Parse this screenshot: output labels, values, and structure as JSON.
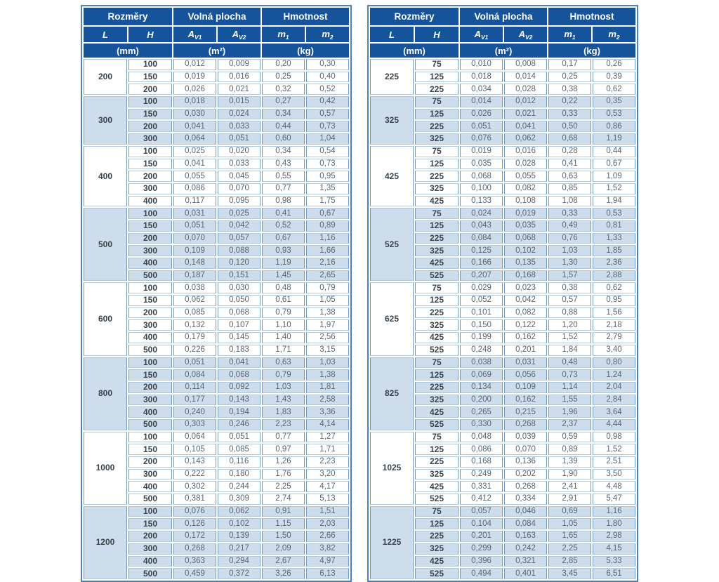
{
  "colors": {
    "header_bg": "#15549b",
    "band_blue": "#cdddec",
    "band_white": "#ffffff",
    "outer_border": "#4d83b5",
    "cell_border_v": "#6f9cc6",
    "cell_border_h": "#aec8df",
    "value_text": "#5b6570",
    "strong_text": "#39434b",
    "page_bg": "#ffffff"
  },
  "tables": [
    {
      "name": "left-table",
      "header": {
        "group_headers": [
          "Rozměry",
          "Volná plocha",
          "Hmotnost"
        ],
        "columns": [
          {
            "label": "L",
            "sub": ""
          },
          {
            "label": "H",
            "sub": ""
          },
          {
            "label": "A",
            "sub": "V1"
          },
          {
            "label": "A",
            "sub": "V2"
          },
          {
            "label": "m",
            "sub": "1"
          },
          {
            "label": "m",
            "sub": "2"
          }
        ],
        "units": [
          "(mm)",
          "(m²)",
          "(kg)"
        ]
      },
      "groups": [
        {
          "L": "200",
          "rows": [
            [
              "100",
              "0,012",
              "0,009",
              "0,20",
              "0,30"
            ],
            [
              "150",
              "0,019",
              "0,016",
              "0,25",
              "0,40"
            ],
            [
              "200",
              "0,026",
              "0,021",
              "0,32",
              "0,52"
            ]
          ]
        },
        {
          "L": "300",
          "rows": [
            [
              "100",
              "0,018",
              "0,015",
              "0,27",
              "0,42"
            ],
            [
              "150",
              "0,030",
              "0,024",
              "0,34",
              "0,57"
            ],
            [
              "200",
              "0,041",
              "0,033",
              "0,44",
              "0,73"
            ],
            [
              "300",
              "0,064",
              "0,051",
              "0,60",
              "1,04"
            ]
          ]
        },
        {
          "L": "400",
          "rows": [
            [
              "100",
              "0,025",
              "0,020",
              "0,34",
              "0,54"
            ],
            [
              "150",
              "0,041",
              "0,033",
              "0,43",
              "0,73"
            ],
            [
              "200",
              "0,055",
              "0,045",
              "0,55",
              "0,95"
            ],
            [
              "300",
              "0,086",
              "0,070",
              "0,77",
              "1,35"
            ],
            [
              "400",
              "0,117",
              "0,095",
              "0,98",
              "1,75"
            ]
          ]
        },
        {
          "L": "500",
          "rows": [
            [
              "100",
              "0,031",
              "0,025",
              "0,41",
              "0,67"
            ],
            [
              "150",
              "0,051",
              "0,042",
              "0,52",
              "0,89"
            ],
            [
              "200",
              "0,070",
              "0,057",
              "0,67",
              "1,16"
            ],
            [
              "300",
              "0,109",
              "0,088",
              "0,93",
              "1,66"
            ],
            [
              "400",
              "0,148",
              "0,120",
              "1,19",
              "2,16"
            ],
            [
              "500",
              "0,187",
              "0,151",
              "1,45",
              "2,65"
            ]
          ]
        },
        {
          "L": "600",
          "rows": [
            [
              "100",
              "0,038",
              "0,030",
              "0,48",
              "0,79"
            ],
            [
              "150",
              "0,062",
              "0,050",
              "0,61",
              "1,05"
            ],
            [
              "200",
              "0,085",
              "0,068",
              "0,79",
              "1,38"
            ],
            [
              "300",
              "0,132",
              "0,107",
              "1,10",
              "1,97"
            ],
            [
              "400",
              "0,179",
              "0,145",
              "1,40",
              "2,56"
            ],
            [
              "500",
              "0,226",
              "0,183",
              "1,71",
              "3,15"
            ]
          ]
        },
        {
          "L": "800",
          "rows": [
            [
              "100",
              "0,051",
              "0,041",
              "0,63",
              "1,03"
            ],
            [
              "150",
              "0,084",
              "0,068",
              "0,79",
              "1,38"
            ],
            [
              "200",
              "0,114",
              "0,092",
              "1,03",
              "1,81"
            ],
            [
              "300",
              "0,177",
              "0,143",
              "1,43",
              "2,58"
            ],
            [
              "400",
              "0,240",
              "0,194",
              "1,83",
              "3,36"
            ],
            [
              "500",
              "0,303",
              "0,246",
              "2,23",
              "4,14"
            ]
          ]
        },
        {
          "L": "1000",
          "rows": [
            [
              "100",
              "0,064",
              "0,051",
              "0,77",
              "1,27"
            ],
            [
              "150",
              "0,105",
              "0,085",
              "0,97",
              "1,71"
            ],
            [
              "200",
              "0,143",
              "0,116",
              "1,26",
              "2,23"
            ],
            [
              "300",
              "0,222",
              "0,180",
              "1,76",
              "3,20"
            ],
            [
              "400",
              "0,302",
              "0,244",
              "2,25",
              "4,17"
            ],
            [
              "500",
              "0,381",
              "0,309",
              "2,74",
              "5,13"
            ]
          ]
        },
        {
          "L": "1200",
          "rows": [
            [
              "100",
              "0,076",
              "0,062",
              "0,91",
              "1,51"
            ],
            [
              "150",
              "0,126",
              "0,102",
              "1,15",
              "2,03"
            ],
            [
              "200",
              "0,172",
              "0,139",
              "1,50",
              "2,66"
            ],
            [
              "300",
              "0,268",
              "0,217",
              "2,09",
              "3,82"
            ],
            [
              "400",
              "0,363",
              "0,294",
              "2,67",
              "4,97"
            ],
            [
              "500",
              "0,459",
              "0,372",
              "3,26",
              "6,13"
            ]
          ]
        }
      ]
    },
    {
      "name": "right-table",
      "header": {
        "group_headers": [
          "Rozměry",
          "Volná plocha",
          "Hmotnost"
        ],
        "columns": [
          {
            "label": "L",
            "sub": ""
          },
          {
            "label": "H",
            "sub": ""
          },
          {
            "label": "A",
            "sub": "V1"
          },
          {
            "label": "A",
            "sub": "V2"
          },
          {
            "label": "m",
            "sub": "1"
          },
          {
            "label": "m",
            "sub": "2"
          }
        ],
        "units": [
          "(mm)",
          "(m²)",
          "(kg)"
        ]
      },
      "groups": [
        {
          "L": "225",
          "rows": [
            [
              "75",
              "0,010",
              "0,008",
              "0,17",
              "0,26"
            ],
            [
              "125",
              "0,018",
              "0,014",
              "0,25",
              "0,39"
            ],
            [
              "225",
              "0,034",
              "0,028",
              "0,38",
              "0,62"
            ]
          ]
        },
        {
          "L": "325",
          "rows": [
            [
              "75",
              "0,014",
              "0,012",
              "0,22",
              "0,35"
            ],
            [
              "125",
              "0,026",
              "0,021",
              "0,33",
              "0,53"
            ],
            [
              "225",
              "0,051",
              "0,041",
              "0,50",
              "0,86"
            ],
            [
              "325",
              "0,076",
              "0,062",
              "0,68",
              "1,19"
            ]
          ]
        },
        {
          "L": "425",
          "rows": [
            [
              "75",
              "0,019",
              "0,016",
              "0,28",
              "0,44"
            ],
            [
              "125",
              "0,035",
              "0,028",
              "0,41",
              "0,67"
            ],
            [
              "225",
              "0,068",
              "0,055",
              "0,63",
              "1,09"
            ],
            [
              "325",
              "0,100",
              "0,082",
              "0,85",
              "1,52"
            ],
            [
              "425",
              "0,133",
              "0,108",
              "1,08",
              "1,94"
            ]
          ]
        },
        {
          "L": "525",
          "rows": [
            [
              "75",
              "0,024",
              "0,019",
              "0,33",
              "0,53"
            ],
            [
              "125",
              "0,043",
              "0,035",
              "0,49",
              "0,81"
            ],
            [
              "225",
              "0,084",
              "0,068",
              "0,76",
              "1,33"
            ],
            [
              "325",
              "0,125",
              "0,102",
              "1,03",
              "1,85"
            ],
            [
              "425",
              "0,166",
              "0,135",
              "1,30",
              "2,36"
            ],
            [
              "525",
              "0,207",
              "0,168",
              "1,57",
              "2,88"
            ]
          ]
        },
        {
          "L": "625",
          "rows": [
            [
              "75",
              "0,029",
              "0,023",
              "0,38",
              "0,62"
            ],
            [
              "125",
              "0,052",
              "0,042",
              "0,57",
              "0,95"
            ],
            [
              "225",
              "0,101",
              "0,082",
              "0,88",
              "1,56"
            ],
            [
              "325",
              "0,150",
              "0,122",
              "1,20",
              "2,18"
            ],
            [
              "425",
              "0,199",
              "0,162",
              "1,52",
              "2,79"
            ],
            [
              "525",
              "0,248",
              "0,201",
              "1,84",
              "3,40"
            ]
          ]
        },
        {
          "L": "825",
          "rows": [
            [
              "75",
              "0,038",
              "0,031",
              "0,48",
              "0,80"
            ],
            [
              "125",
              "0,069",
              "0,056",
              "0,73",
              "1,24"
            ],
            [
              "225",
              "0,134",
              "0,109",
              "1,14",
              "2,04"
            ],
            [
              "325",
              "0,200",
              "0,162",
              "1,55",
              "2,84"
            ],
            [
              "425",
              "0,265",
              "0,215",
              "1,96",
              "3,64"
            ],
            [
              "525",
              "0,330",
              "0,268",
              "2,37",
              "4,44"
            ]
          ]
        },
        {
          "L": "1025",
          "rows": [
            [
              "75",
              "0,048",
              "0,039",
              "0,59",
              "0,98"
            ],
            [
              "125",
              "0,086",
              "0,070",
              "0,89",
              "1,52"
            ],
            [
              "225",
              "0,168",
              "0,136",
              "1,39",
              "2,51"
            ],
            [
              "325",
              "0,249",
              "0,202",
              "1,90",
              "3,50"
            ],
            [
              "425",
              "0,331",
              "0,268",
              "2,41",
              "4,48"
            ],
            [
              "525",
              "0,412",
              "0,334",
              "2,91",
              "5,47"
            ]
          ]
        },
        {
          "L": "1225",
          "rows": [
            [
              "75",
              "0,057",
              "0,046",
              "0,69",
              "1,16"
            ],
            [
              "125",
              "0,104",
              "0,084",
              "1,05",
              "1,80"
            ],
            [
              "225",
              "0,201",
              "0,163",
              "1,65",
              "2,98"
            ],
            [
              "325",
              "0,299",
              "0,242",
              "2,25",
              "4,15"
            ],
            [
              "425",
              "0,396",
              "0,321",
              "2,85",
              "5,33"
            ],
            [
              "525",
              "0,494",
              "0,401",
              "3,45",
              "6,51"
            ]
          ]
        }
      ]
    }
  ]
}
